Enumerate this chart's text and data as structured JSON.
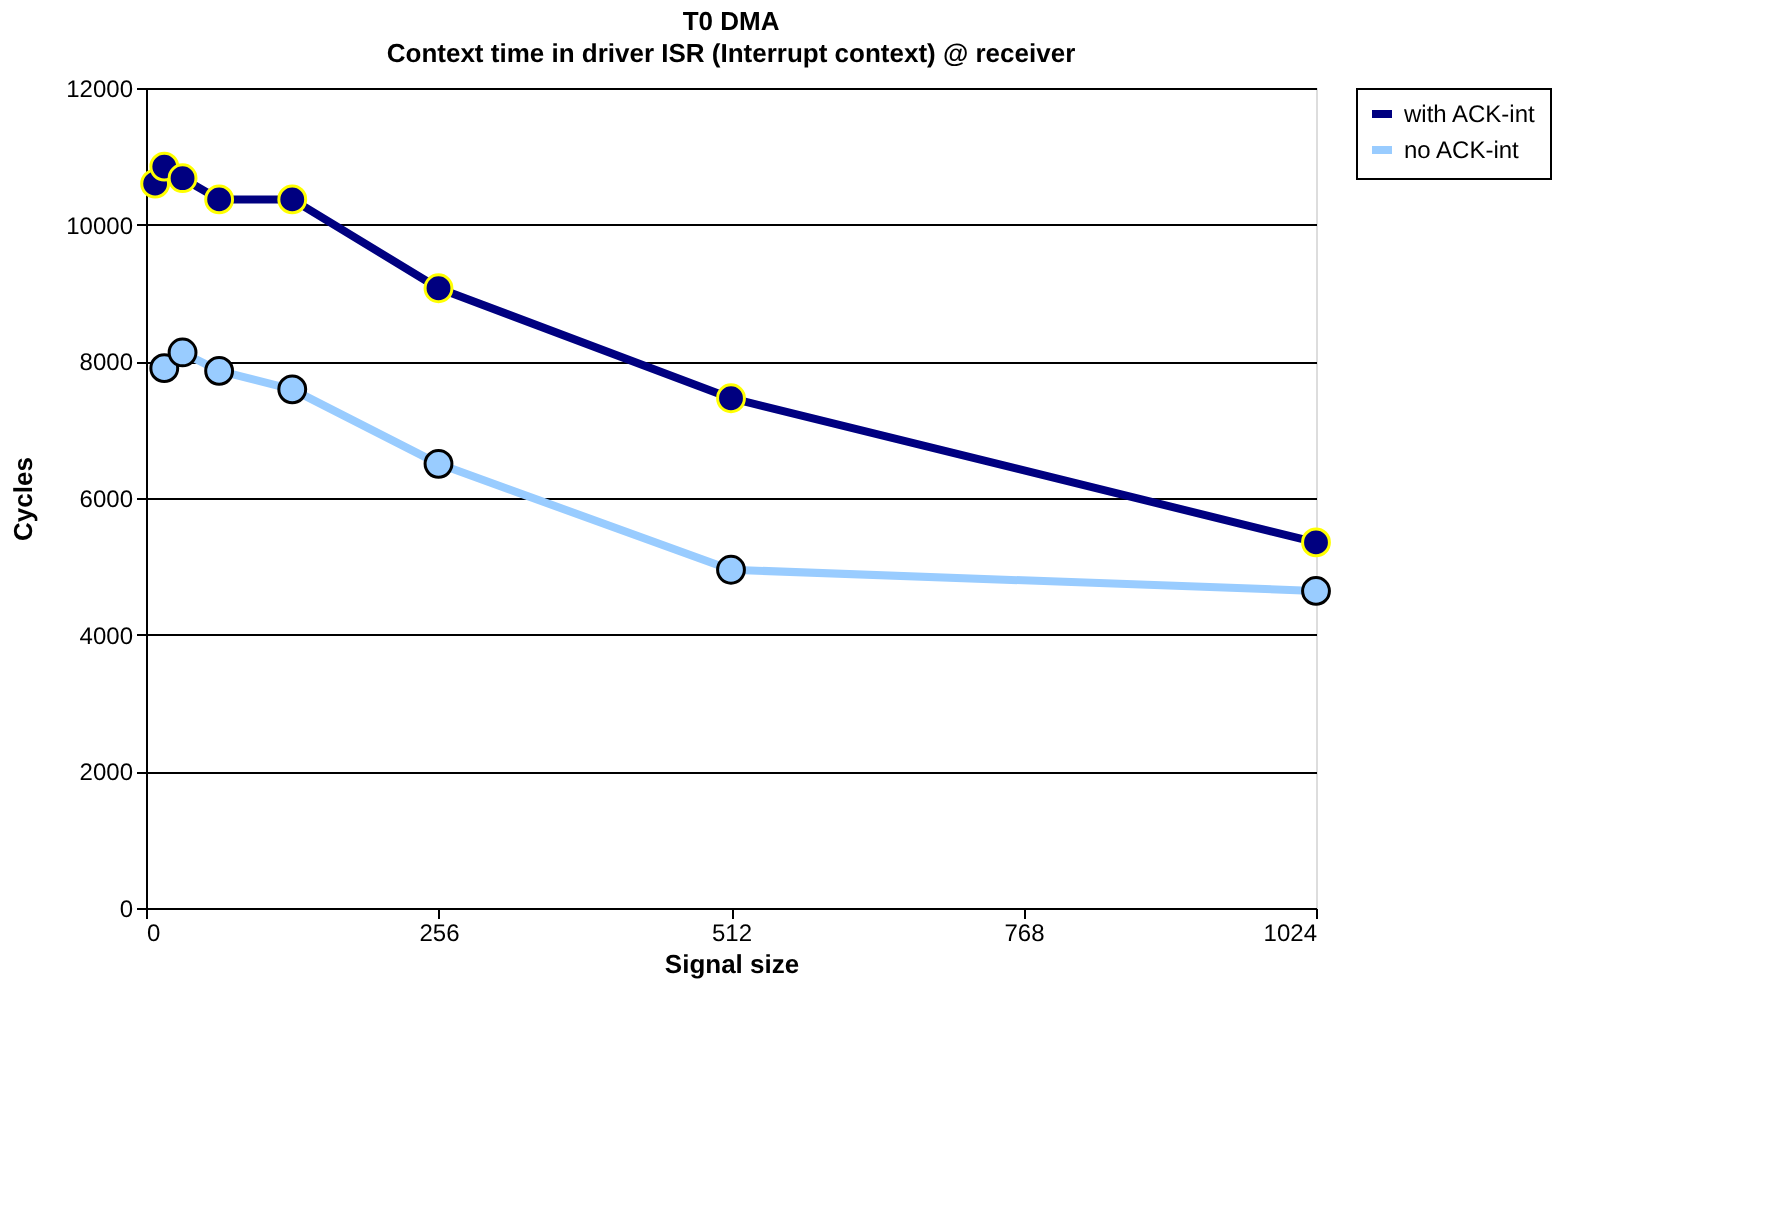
{
  "chart_data": {
    "type": "line",
    "title": "T0 DMA",
    "subtitle": "Context time in driver ISR (Interrupt context) @ receiver",
    "xlabel": "Signal size",
    "ylabel": "Cycles",
    "xlim": [
      0,
      1024
    ],
    "xticks": [
      0,
      256,
      512,
      768,
      1024
    ],
    "ylim": [
      0,
      12000
    ],
    "yticks": [
      0,
      2000,
      4000,
      6000,
      8000,
      10000,
      12000
    ],
    "grid": "y",
    "legend": "right",
    "marker": "circle",
    "line_style": "solid",
    "series": [
      {
        "name": "with ACK-int",
        "color": "#000080",
        "x": [
          8,
          16,
          32,
          64,
          128,
          256,
          512,
          1024
        ],
        "values": [
          10600,
          10850,
          10680,
          10370,
          10370,
          9070,
          7460,
          5350
        ]
      },
      {
        "name": "no ACK-int",
        "color": "#99ccff",
        "x": [
          16,
          32,
          64,
          128,
          256,
          512,
          1024
        ],
        "values": [
          7900,
          8130,
          7860,
          7590,
          6500,
          4950,
          4640
        ]
      }
    ]
  }
}
